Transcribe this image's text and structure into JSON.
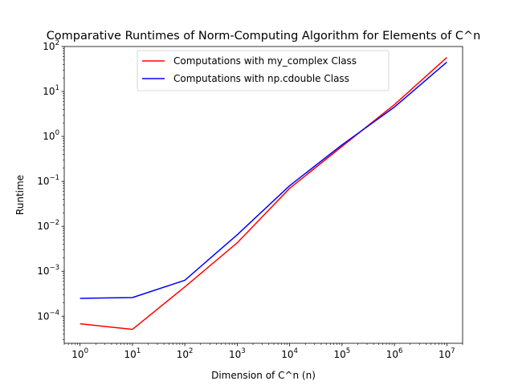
{
  "chart_data": {
    "type": "line",
    "title": "Comparative Runtimes of Norm-Computing Algorithm for Elements of C^n",
    "xlabel": "Dimension of C^n (n)",
    "ylabel": "Runtime",
    "xscale": "log",
    "yscale": "log",
    "xlim": [
      0.5,
      20000000
    ],
    "ylim": [
      2.5e-05,
      100
    ],
    "x_tick_labels": [
      {
        "base": "10",
        "exp": "0"
      },
      {
        "base": "10",
        "exp": "1"
      },
      {
        "base": "10",
        "exp": "2"
      },
      {
        "base": "10",
        "exp": "3"
      },
      {
        "base": "10",
        "exp": "4"
      },
      {
        "base": "10",
        "exp": "5"
      },
      {
        "base": "10",
        "exp": "6"
      },
      {
        "base": "10",
        "exp": "7"
      }
    ],
    "x_tick_values": [
      1,
      10,
      100,
      1000,
      10000,
      100000,
      1000000,
      10000000
    ],
    "y_tick_labels": [
      {
        "base": "10",
        "exp": "−4"
      },
      {
        "base": "10",
        "exp": "−3"
      },
      {
        "base": "10",
        "exp": "−2"
      },
      {
        "base": "10",
        "exp": "−1"
      },
      {
        "base": "10",
        "exp": "0"
      },
      {
        "base": "10",
        "exp": "1"
      },
      {
        "base": "10",
        "exp": "2"
      }
    ],
    "y_tick_values": [
      0.0001,
      0.001,
      0.01,
      0.1,
      1,
      10,
      100
    ],
    "legend_position": "upper-center",
    "grid": false,
    "x": [
      1,
      10,
      100,
      1000,
      10000,
      100000,
      1000000,
      10000000
    ],
    "series": [
      {
        "name": "Computations with my_complex Class",
        "color": "#ff0000",
        "values": [
          6.8e-05,
          5.1e-05,
          0.00045,
          0.0043,
          0.07,
          0.6,
          5.1,
          57
        ]
      },
      {
        "name": "Computations with np.cdouble Class",
        "color": "#0000ff",
        "values": [
          0.00025,
          0.00026,
          0.00063,
          0.0065,
          0.08,
          0.65,
          4.5,
          45
        ]
      }
    ]
  }
}
